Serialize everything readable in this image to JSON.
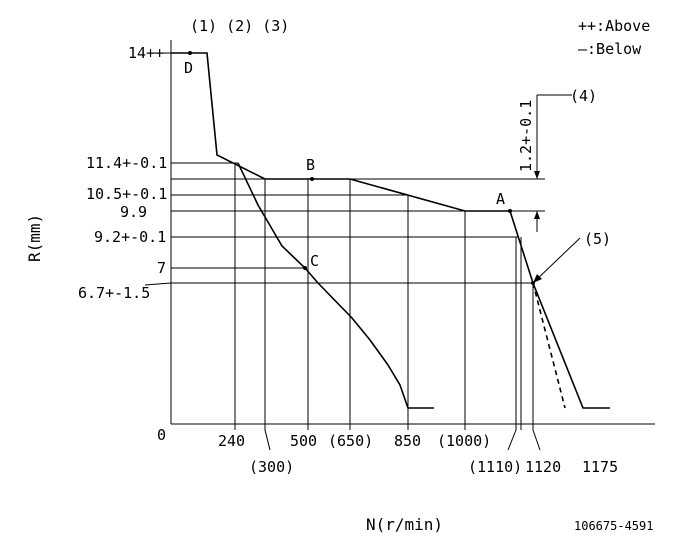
{
  "header_refs": "(1) (2) (3)",
  "legend": {
    "above": "++:Above",
    "below": "—:Below"
  },
  "y_axis_title": "R(mm)",
  "x_axis_title": "N(r/min)",
  "figure_id": "106675-4591",
  "y_labels": {
    "y14": "14++",
    "y11_4": "11.4+-0.1",
    "y10_5": "10.5+-0.1",
    "y9_9": "9.9",
    "y9_2": "9.2+-0.1",
    "y7": "7",
    "y6_7": "6.7+-1.5",
    "origin": "0"
  },
  "x_labels": {
    "n240": "240",
    "n300": "(300)",
    "n500": "500",
    "n650": "(650)",
    "n850": "850",
    "n1000": "(1000)",
    "n1110": "(1110)",
    "n1120": "1120",
    "n1175": "1175"
  },
  "points": {
    "A": "A",
    "B": "B",
    "C": "C",
    "D": "D"
  },
  "callouts": {
    "c4": "(4)",
    "c5": "(5)",
    "dim": "1.2+-0.1"
  }
}
